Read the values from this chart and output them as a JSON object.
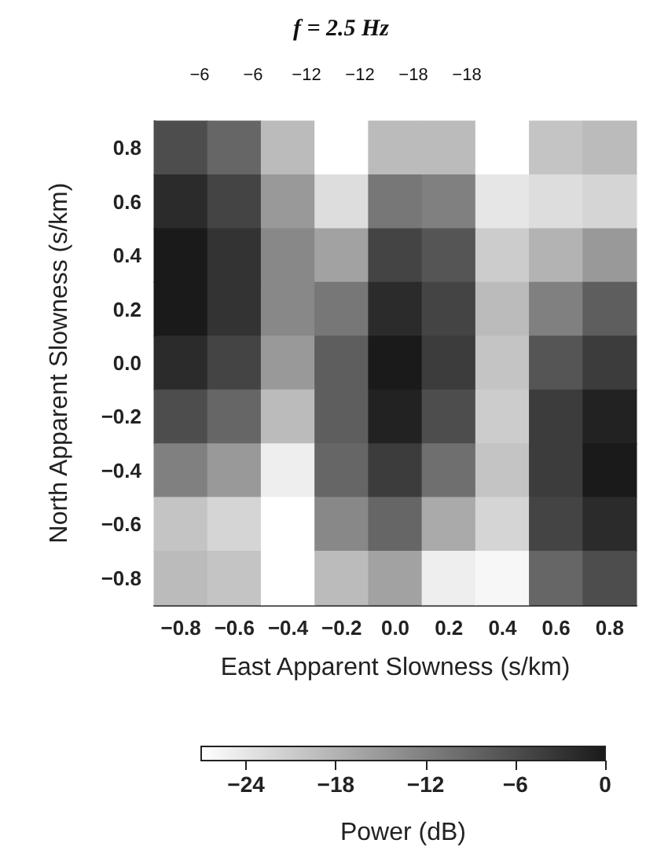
{
  "chart_data": {
    "type": "heatmap",
    "title": "f = 2.5 Hz",
    "xlabel": "East Apparent Slowness (s/km)",
    "ylabel": "North Apparent Slowness (s/km)",
    "clabel": "Power (dB)",
    "categories": [
      "−0.8",
      "−0.6",
      "−0.4",
      "−0.2",
      "0.0",
      "0.2",
      "0.4",
      "0.6",
      "0.8"
    ],
    "y_categories": [
      "0.8",
      "0.6",
      "0.4",
      "0.2",
      "0.0",
      "−0.2",
      "−0.4",
      "−0.6",
      "−0.8"
    ],
    "cells": [
      [
        -6,
        -9,
        -19,
        -27,
        -19,
        -19,
        -27,
        -20,
        -19
      ],
      [
        -2,
        -5,
        -15,
        -23,
        -11,
        -12,
        -24,
        -23,
        -22
      ],
      [
        0,
        -3,
        -13,
        -16,
        -5,
        -7,
        -21,
        -18,
        -15
      ],
      [
        0,
        -3,
        -13,
        -11,
        -2,
        -5,
        -19,
        -12,
        -8
      ],
      [
        -2,
        -5,
        -15,
        -8,
        0,
        -4,
        -20,
        -7,
        -4
      ],
      [
        -6,
        -9,
        -19,
        -8,
        -1,
        -6,
        -21,
        -4,
        -1
      ],
      [
        -12,
        -15,
        -25,
        -9,
        -4,
        -10,
        -20,
        -4,
        0
      ],
      [
        -20,
        -22,
        -27,
        -13,
        -9,
        -17,
        -22,
        -5,
        -2
      ],
      [
        -19,
        -20,
        -27,
        -19,
        -16,
        -25,
        -26,
        -9,
        -6
      ]
    ],
    "clim": [
      -27,
      0
    ],
    "cticks": [
      -24,
      -18,
      -12,
      -6,
      0
    ],
    "annotations": [
      "−6",
      "−6",
      "−12",
      "−12",
      "−18",
      "−18"
    ]
  }
}
